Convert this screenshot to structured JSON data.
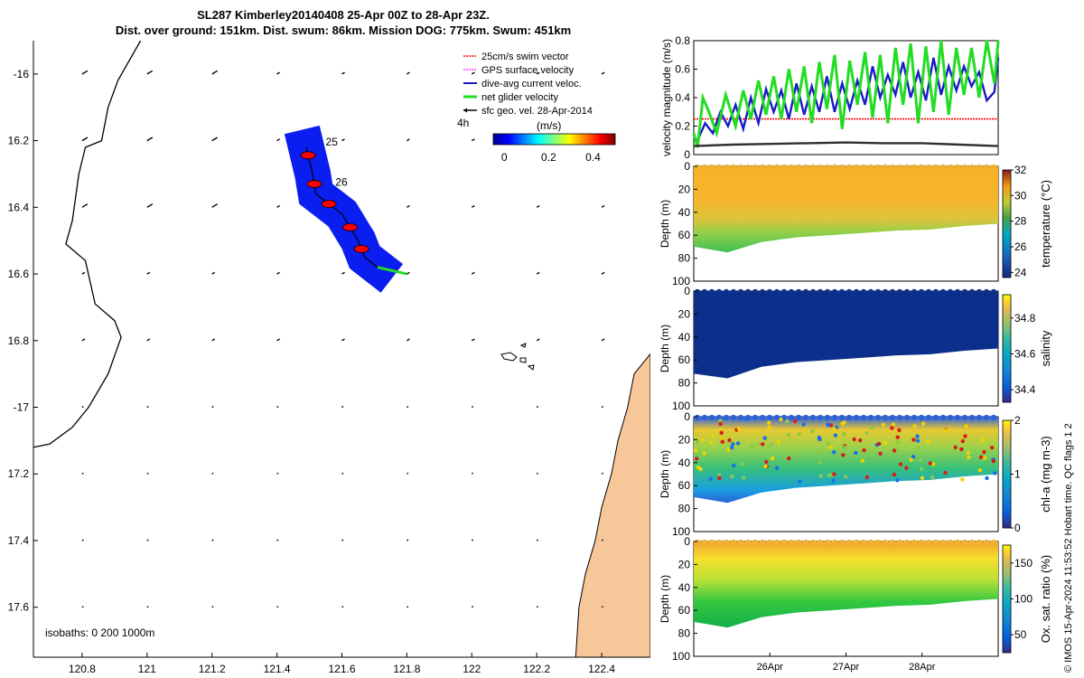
{
  "title": {
    "line1": "SL287 Kimberley20140408 25-Apr 00Z to 28-Apr 23Z.",
    "line2": "Dist. over ground: 151km. Dist. swum: 86km. Mission DOG: 775km. Swum: 451km"
  },
  "colors": {
    "coast": "#f7c79a",
    "track_patch": "#0a1ef0",
    "swim": "#ff0000",
    "gps": "#ff33ff",
    "dive_avg": "#1a1ac8",
    "net_glider": "#22dd22",
    "sfc_geo": "#000000"
  },
  "chart_data": [
    {
      "id": "map",
      "type": "scatter",
      "title": "Glider track and velocity vectors",
      "xlim": [
        120.65,
        122.55
      ],
      "ylim": [
        -17.75,
        -15.9
      ],
      "xticks": [
        120.8,
        121,
        121.2,
        121.4,
        121.6,
        121.8,
        122,
        122.2,
        122.4
      ],
      "yticks": [
        -16,
        -16.2,
        -16.4,
        -16.6,
        -16.8,
        -17,
        -17.2,
        -17.4,
        -17.6
      ],
      "xtick_labels": [
        "120.8",
        "121",
        "121.2",
        "121.4",
        "121.6",
        "121.8",
        "122",
        "122.2",
        "122.4"
      ],
      "ytick_labels": [
        "-16",
        "16.2",
        "16.4",
        "16.6",
        "16.8",
        "-17",
        "17.2",
        "17.4",
        "17.6"
      ],
      "legend": [
        {
          "label": "25cm/s swim vector",
          "color": "#ff0000"
        },
        {
          "label": "GPS surface velocity",
          "color": "#ff33ff"
        },
        {
          "label": "dive-avg current veloc.",
          "color": "#1a1ac8"
        },
        {
          "label": "net glider velocity",
          "color": "#22dd22"
        },
        {
          "label": "sfc geo. vel. 28-Apr-2014",
          "color": "#000000"
        }
      ],
      "legend_note": "4h",
      "colorbar": {
        "label": "(m/s)",
        "ticks": [
          0,
          0.2,
          0.4
        ],
        "tick_labels": [
          "0",
          "0.2",
          "0.4"
        ],
        "range": [
          -0.05,
          0.5
        ]
      },
      "day_labels": [
        {
          "text": "25",
          "lon": 121.55,
          "lat": -16.215
        },
        {
          "text": "26",
          "lon": 121.58,
          "lat": -16.335
        }
      ],
      "track": [
        [
          121.49,
          -16.22
        ],
        [
          121.51,
          -16.3
        ],
        [
          121.52,
          -16.36
        ],
        [
          121.6,
          -16.42
        ],
        [
          121.65,
          -16.5
        ],
        [
          121.67,
          -16.55
        ],
        [
          121.71,
          -16.58
        ]
      ],
      "net_velocity_end": [
        121.8,
        -16.6
      ],
      "vector_grid": {
        "lons": [
          120.8,
          121,
          121.2,
          121.4,
          121.6,
          121.8,
          122,
          122.2,
          122.4
        ],
        "lats": [
          -16,
          -16.2,
          -16.4,
          -16.6,
          -16.8,
          -17,
          -17.2,
          -17.4,
          -17.6
        ]
      },
      "coastline_west": [
        [
          120.98,
          -15.9
        ],
        [
          120.91,
          -16.02
        ],
        [
          120.88,
          -16.1
        ],
        [
          120.86,
          -16.2
        ],
        [
          120.81,
          -16.22
        ],
        [
          120.79,
          -16.3
        ],
        [
          120.77,
          -16.44
        ],
        [
          120.75,
          -16.51
        ],
        [
          120.81,
          -16.56
        ],
        [
          120.84,
          -16.69
        ],
        [
          120.9,
          -16.74
        ],
        [
          120.92,
          -16.79
        ],
        [
          120.88,
          -16.9
        ],
        [
          120.82,
          -17.0
        ],
        [
          120.77,
          -17.06
        ],
        [
          120.7,
          -17.11
        ],
        [
          120.65,
          -17.12
        ]
      ],
      "land_east": [
        [
          122.55,
          -16.84
        ],
        [
          122.5,
          -16.9
        ],
        [
          122.48,
          -17.0
        ],
        [
          122.45,
          -17.1
        ],
        [
          122.43,
          -17.2
        ],
        [
          122.4,
          -17.3
        ],
        [
          122.38,
          -17.4
        ],
        [
          122.35,
          -17.5
        ],
        [
          122.33,
          -17.6
        ],
        [
          122.32,
          -17.75
        ],
        [
          122.55,
          -17.75
        ]
      ],
      "isobath_note": "isobaths: 0   200  1000m"
    },
    {
      "id": "velocity",
      "type": "line",
      "ylabel": "velocity magnitude (m/s)",
      "ylim": [
        0,
        0.8
      ],
      "yticks": [
        0,
        0.2,
        0.4,
        0.6,
        0.8
      ],
      "ytick_labels": [
        "0",
        "0.2",
        "0.4",
        "0.6",
        "0.8"
      ],
      "x_days": [
        25.0,
        29.0
      ],
      "series": [
        {
          "name": "25cm/s swim vector",
          "color": "#ff0000",
          "values": [
            0.25,
            0.25
          ]
        },
        {
          "name": "dive-avg current veloc.",
          "color": "#1a1ac8",
          "x": [
            25.0,
            25.05,
            25.15,
            25.25,
            25.35,
            25.45,
            25.55,
            25.65,
            25.75,
            25.85,
            25.95,
            26.05,
            26.15,
            26.25,
            26.35,
            26.45,
            26.55,
            26.65,
            26.75,
            26.85,
            26.95,
            27.05,
            27.15,
            27.25,
            27.35,
            27.45,
            27.55,
            27.65,
            27.75,
            27.85,
            27.95,
            28.05,
            28.15,
            28.25,
            28.35,
            28.45,
            28.55,
            28.65,
            28.75,
            28.85,
            28.95,
            29.0
          ],
          "values": [
            0.12,
            0.1,
            0.22,
            0.15,
            0.3,
            0.2,
            0.35,
            0.18,
            0.4,
            0.22,
            0.46,
            0.3,
            0.45,
            0.25,
            0.5,
            0.28,
            0.48,
            0.3,
            0.55,
            0.3,
            0.5,
            0.32,
            0.52,
            0.35,
            0.62,
            0.4,
            0.56,
            0.42,
            0.65,
            0.4,
            0.58,
            0.38,
            0.68,
            0.42,
            0.62,
            0.45,
            0.62,
            0.48,
            0.58,
            0.38,
            0.44,
            0.68
          ]
        },
        {
          "name": "net glider velocity",
          "color": "#22dd22",
          "x": [
            25.0,
            25.05,
            25.12,
            25.2,
            25.3,
            25.42,
            25.55,
            25.65,
            25.75,
            25.85,
            25.95,
            26.05,
            26.15,
            26.25,
            26.35,
            26.45,
            26.55,
            26.65,
            26.75,
            26.85,
            26.95,
            27.05,
            27.15,
            27.25,
            27.35,
            27.45,
            27.55,
            27.65,
            27.75,
            27.85,
            27.95,
            28.05,
            28.15,
            28.25,
            28.35,
            28.45,
            28.55,
            28.65,
            28.75,
            28.85,
            28.95,
            29.0
          ],
          "values": [
            0.15,
            0.05,
            0.4,
            0.3,
            0.15,
            0.42,
            0.2,
            0.45,
            0.25,
            0.52,
            0.28,
            0.55,
            0.25,
            0.6,
            0.3,
            0.62,
            0.22,
            0.65,
            0.32,
            0.7,
            0.18,
            0.66,
            0.35,
            0.72,
            0.26,
            0.7,
            0.22,
            0.75,
            0.35,
            0.78,
            0.22,
            0.76,
            0.3,
            0.8,
            0.28,
            0.75,
            0.42,
            0.75,
            0.4,
            0.8,
            0.5,
            0.8
          ]
        },
        {
          "name": "sfc geo. vel. 28-Apr-2014",
          "color": "#303030",
          "x": [
            25.0,
            25.5,
            26.0,
            26.5,
            27.0,
            27.5,
            28.0,
            28.5,
            29.0
          ],
          "values": [
            0.06,
            0.07,
            0.075,
            0.08,
            0.085,
            0.08,
            0.08,
            0.07,
            0.06
          ]
        }
      ]
    },
    {
      "id": "temperature",
      "type": "heatmap",
      "ylabel": "Depth (m)",
      "ylim": [
        0,
        100
      ],
      "yticks": [
        0,
        20,
        40,
        60,
        80,
        100
      ],
      "ytick_labels": [
        "0",
        "20",
        "40",
        "60",
        "80",
        "100"
      ],
      "colorbar_label": "temperature (°C)",
      "colorbar_ticks": [
        24,
        26,
        28,
        30,
        32
      ],
      "colorbar_tick_labels": [
        "24",
        "26",
        "28",
        "30",
        "32"
      ],
      "colormap": "parula",
      "bottom_depth": [
        70,
        75,
        66,
        62,
        60,
        58,
        56,
        55,
        52,
        50
      ]
    },
    {
      "id": "salinity",
      "type": "heatmap",
      "ylabel": "Depth (m)",
      "ylim": [
        0,
        100
      ],
      "yticks": [
        0,
        20,
        40,
        60,
        80,
        100
      ],
      "ytick_labels": [
        "0",
        "20",
        "40",
        "60",
        "80",
        "100"
      ],
      "colorbar_label": "salinity",
      "colorbar_ticks": [
        34.4,
        34.6,
        34.8
      ],
      "colorbar_tick_labels": [
        "34.4",
        "34.6",
        "34.8"
      ],
      "colormap": "parula",
      "bottom_depth": [
        72,
        76,
        66,
        62,
        60,
        58,
        56,
        55,
        52,
        50
      ]
    },
    {
      "id": "chla",
      "type": "heatmap",
      "ylabel": "Depth (m)",
      "ylim": [
        0,
        100
      ],
      "yticks": [
        0,
        20,
        40,
        60,
        80,
        100
      ],
      "ytick_labels": [
        "0",
        "20",
        "40",
        "60",
        "80",
        "100"
      ],
      "colorbar_label": "chl-a (mg m-3)",
      "colorbar_ticks": [
        0,
        1,
        2
      ],
      "colorbar_tick_labels": [
        "0",
        "1",
        "2"
      ],
      "colormap": "parula",
      "bottom_depth": [
        70,
        75,
        66,
        62,
        60,
        58,
        56,
        55,
        52,
        50
      ]
    },
    {
      "id": "oxygen",
      "type": "heatmap",
      "ylabel": "Depth (m)",
      "ylim": [
        0,
        100
      ],
      "yticks": [
        0,
        20,
        40,
        60,
        80,
        100
      ],
      "ytick_labels": [
        "0",
        "20",
        "40",
        "60",
        "80",
        "100"
      ],
      "colorbar_label": "Ox. sat. ratio (%)",
      "colorbar_ticks": [
        50,
        100,
        150
      ],
      "colorbar_tick_labels": [
        "50",
        "100",
        "150"
      ],
      "colormap": "parula",
      "xticks": [
        26,
        27,
        28
      ],
      "xtick_labels": [
        "26Apr",
        "27Apr",
        "28Apr"
      ],
      "bottom_depth": [
        70,
        75,
        66,
        62,
        60,
        58,
        56,
        55,
        52,
        50
      ]
    }
  ],
  "footer": {
    "copyright": "© IMOS 15-Apr-2024 11:53:52 Hobart time. QC flags 1  2"
  }
}
